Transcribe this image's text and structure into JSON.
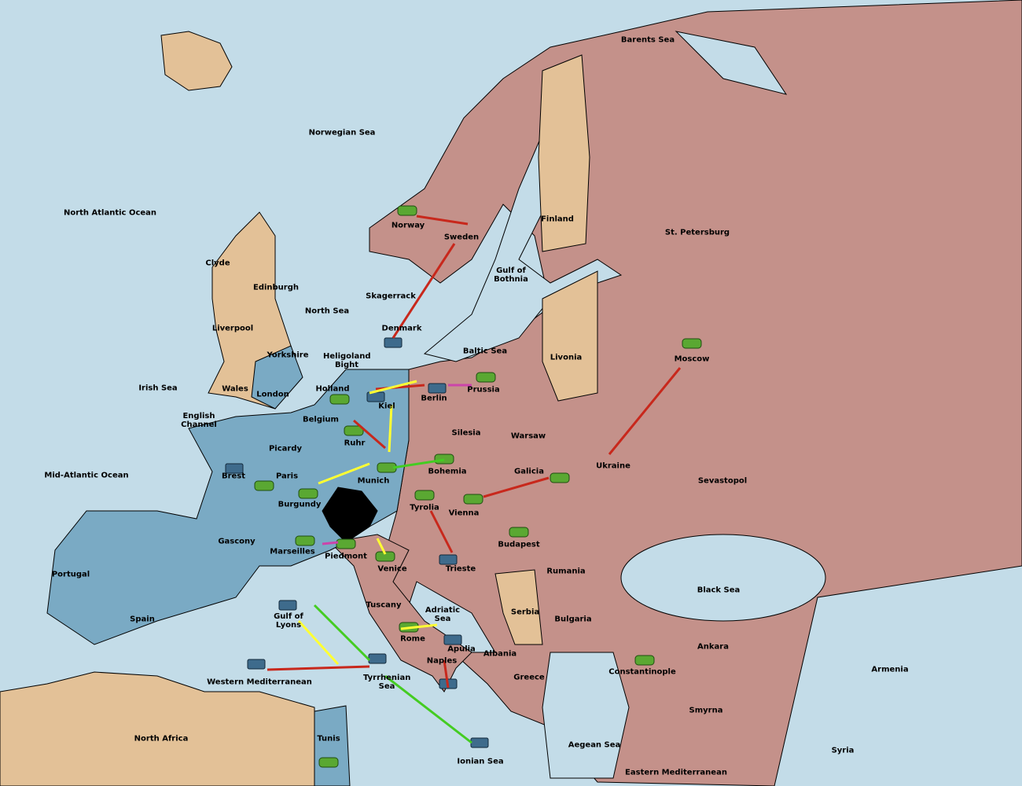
{
  "provinces": [
    "Barents Sea",
    "Norwegian Sea",
    "North Atlantic Ocean",
    "Finland",
    "St. Petersburg",
    "Norway",
    "Sweden",
    "Gulf of Bothnia",
    "Clyde",
    "Edinburgh",
    "Skagerrack",
    "North Sea",
    "Liverpool",
    "Denmark",
    "Yorkshire",
    "Heligoland Bight",
    "Baltic Sea",
    "Livonia",
    "Moscow",
    "Irish Sea",
    "Wales",
    "London",
    "Holland",
    "Kiel",
    "Berlin",
    "Prussia",
    "English Channel",
    "Belgium",
    "Silesia",
    "Warsaw",
    "Picardy",
    "Ruhr",
    "Ukraine",
    "Mid-Atlantic Ocean",
    "Brest",
    "Paris",
    "Munich",
    "Bohemia",
    "Galicia",
    "Sevastopol",
    "Burgundy",
    "Tyrolia",
    "Vienna",
    "Budapest",
    "Gascony",
    "Marseilles",
    "Piedmont",
    "Venice",
    "Trieste",
    "Portugal",
    "Rumania",
    "Black Sea",
    "Spain",
    "Tuscany",
    "Serbia",
    "Bulgaria",
    "Gulf of Lyons",
    "Adriatic Sea",
    "Rome",
    "Apulia",
    "Albania",
    "Ankara",
    "Armenia",
    "Naples",
    "Constantinople",
    "Western Mediterranean",
    "Tyrrhenian Sea",
    "Greece",
    "Smyrna",
    "North Africa",
    "Tunis",
    "Aegean Sea",
    "Ionian Sea",
    "Syria",
    "Eastern Mediterranean"
  ]
}
